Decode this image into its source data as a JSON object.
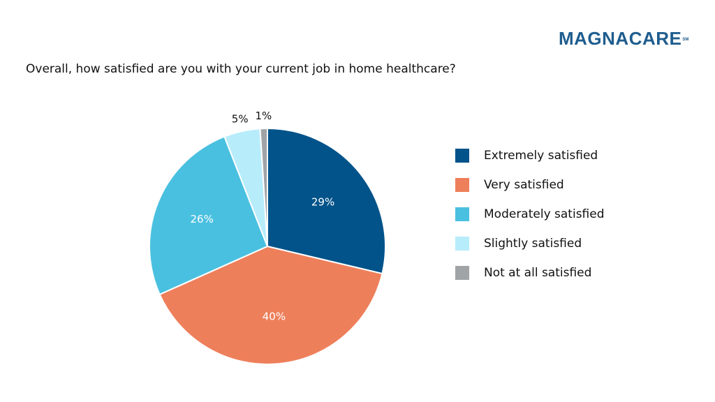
{
  "logo": {
    "text": "MAGNACARE",
    "mark": "SM",
    "color": "#1f5d8e"
  },
  "question": "Overall, how satisfied are you with your current job in home healthcare?",
  "chart_data": {
    "type": "pie",
    "title": "Overall, how satisfied are you with your current job in home healthcare?",
    "start_angle_deg": 0,
    "direction": "clockwise",
    "legend_position": "right",
    "slices": [
      {
        "label": "Extremely satisfied",
        "value": 29,
        "display": "29%",
        "color": "#02538a",
        "label_color": "#ffffff"
      },
      {
        "label": "Very satisfied",
        "value": 40,
        "display": "40%",
        "color": "#ee7f5b",
        "label_color": "#ffffff"
      },
      {
        "label": "Moderately satisfied",
        "value": 26,
        "display": "26%",
        "color": "#4ac0e0",
        "label_color": "#ffffff"
      },
      {
        "label": "Slightly satisfied",
        "value": 5,
        "display": "5%",
        "color": "#b7ecfb",
        "label_color": "#111111"
      },
      {
        "label": "Not at all satisfied",
        "value": 1,
        "display": "1%",
        "color": "#a0a4a7",
        "label_color": "#111111"
      }
    ]
  }
}
